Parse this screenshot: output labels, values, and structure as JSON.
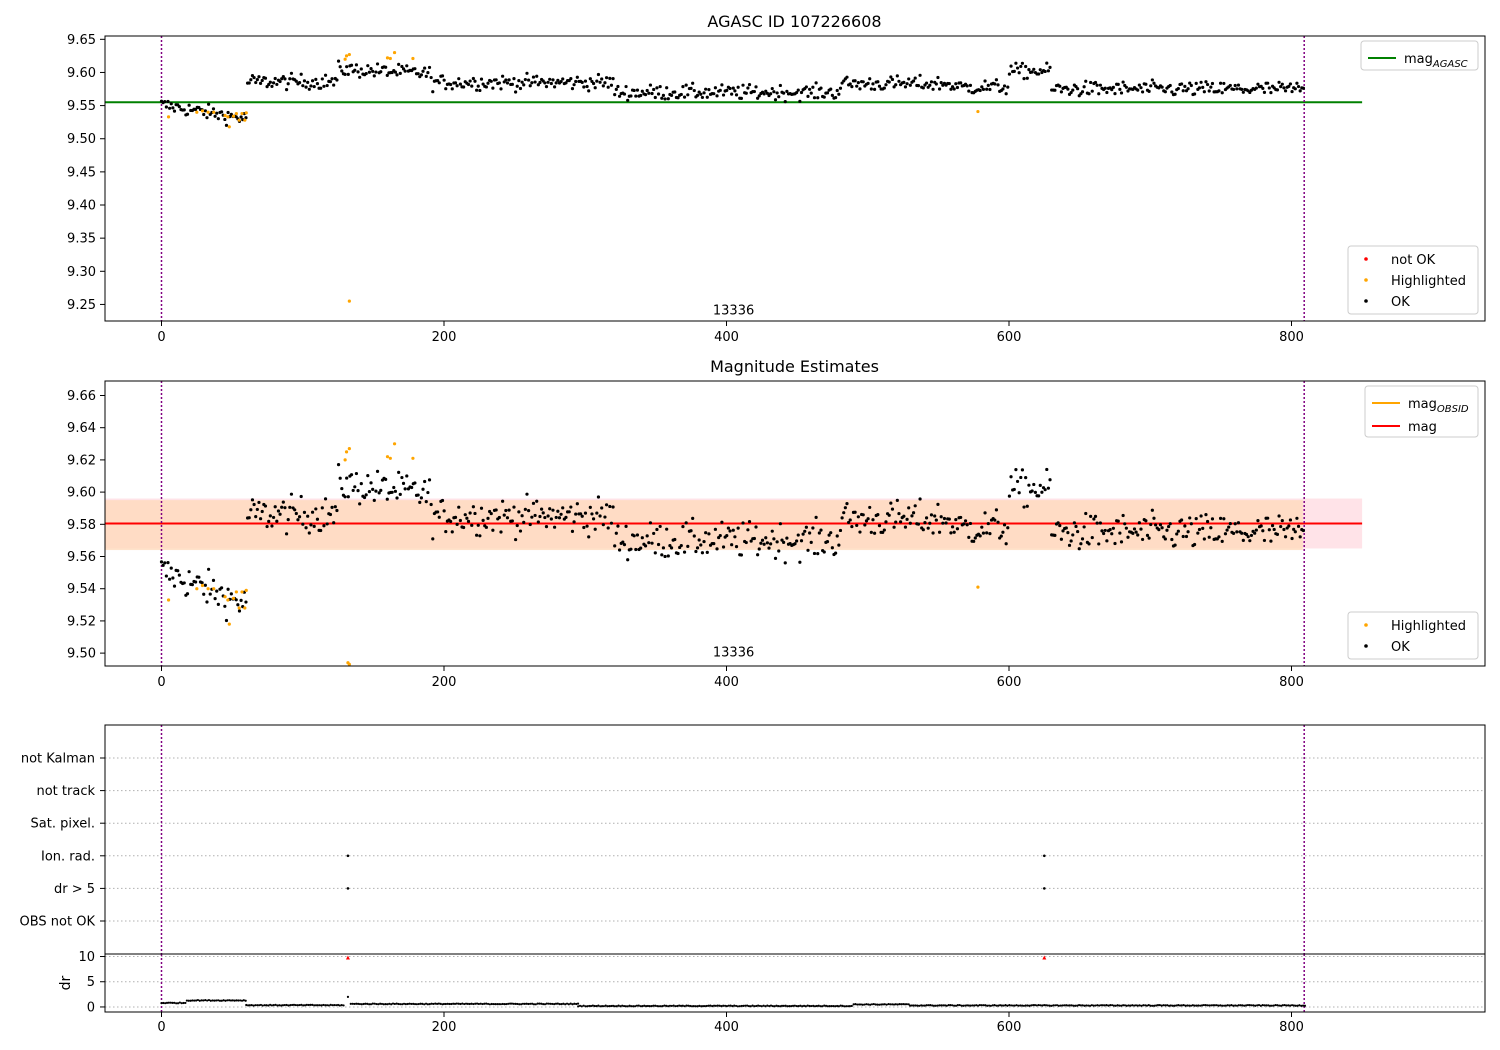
{
  "figure": {
    "title_top": "AGASC ID 107226608",
    "title_middle": "Magnitude Estimates",
    "colors": {
      "ok": "#000000",
      "highlighted": "#ffa500",
      "not_ok": "#ff0000",
      "agasc_line": "#008000",
      "obsid_line": "#ffa500",
      "mag_line": "#ff0000",
      "obsid_band": "#ffdab9",
      "mag_band": "#ffc0cb",
      "obs_boundary": "#800080"
    }
  },
  "chart_data": [
    {
      "id": "top",
      "type": "scatter",
      "title": "AGASC ID 107226608",
      "xlim": [
        -40,
        937
      ],
      "ylim": [
        9.225,
        9.655
      ],
      "xticks": [
        0,
        200,
        400,
        600,
        800
      ],
      "yticks": [
        9.25,
        9.3,
        9.35,
        9.4,
        9.45,
        9.5,
        9.55,
        9.6,
        9.65
      ],
      "ytick_labels": [
        "9.25",
        "9.30",
        "9.35",
        "9.40",
        "9.45",
        "9.50",
        "9.55",
        "9.60",
        "9.65"
      ],
      "annotation": {
        "text": "13336",
        "x": 405,
        "y": 9.235
      },
      "obs_boundaries": [
        0,
        809
      ],
      "reference_lines": [
        {
          "name": "mag_AGASC",
          "y": 9.555,
          "x_range": [
            -40,
            850
          ],
          "color": "#008000"
        }
      ],
      "legend_lines": [
        {
          "base": "mag",
          "sub": "AGASC",
          "color": "#008000"
        }
      ],
      "legend_points": [
        {
          "label": "not OK",
          "color": "#ff0000"
        },
        {
          "label": "Highlighted",
          "color": "#ffa500"
        },
        {
          "label": "OK",
          "color": "#000000"
        }
      ],
      "highlighted_points": [
        [
          5,
          9.533
        ],
        [
          25,
          9.54
        ],
        [
          29,
          9.542
        ],
        [
          33,
          9.54
        ],
        [
          37,
          9.54
        ],
        [
          45,
          9.535
        ],
        [
          47,
          9.533
        ],
        [
          48,
          9.518
        ],
        [
          51,
          9.534
        ],
        [
          53,
          9.538
        ],
        [
          55,
          9.528
        ],
        [
          57,
          9.538
        ],
        [
          59,
          9.528
        ],
        [
          60,
          9.539
        ],
        [
          130,
          9.62
        ],
        [
          131,
          9.625
        ],
        [
          133,
          9.627
        ],
        [
          133,
          9.255
        ],
        [
          160,
          9.622
        ],
        [
          162,
          9.621
        ],
        [
          165,
          9.63
        ],
        [
          178,
          9.621
        ],
        [
          578,
          9.541
        ]
      ]
    },
    {
      "id": "middle",
      "type": "scatter",
      "title": "Magnitude Estimates",
      "xlim": [
        -40,
        937
      ],
      "ylim": [
        9.492,
        9.669
      ],
      "xticks": [
        0,
        200,
        400,
        600,
        800
      ],
      "yticks": [
        9.5,
        9.52,
        9.54,
        9.56,
        9.58,
        9.6,
        9.62,
        9.64,
        9.66
      ],
      "ytick_labels": [
        "9.50",
        "9.52",
        "9.54",
        "9.56",
        "9.58",
        "9.60",
        "9.62",
        "9.64",
        "9.66"
      ],
      "annotation": {
        "text": "13336",
        "x": 405,
        "y": 9.498
      },
      "obs_boundaries": [
        0,
        809
      ],
      "bands": [
        {
          "y0": 9.565,
          "y1": 9.596,
          "x_range": [
            -40,
            850
          ],
          "color": "#ffc0cb"
        },
        {
          "y0": 9.564,
          "y1": 9.595,
          "x_range": [
            -40,
            808
          ],
          "color": "#ffdab9"
        }
      ],
      "reference_lines": [
        {
          "name": "mag_OBSID",
          "y": 9.5805,
          "x_range": [
            -40,
            808
          ],
          "color": "#ffa500"
        },
        {
          "name": "mag",
          "y": 9.5805,
          "x_range": [
            -40,
            850
          ],
          "color": "#ff0000"
        }
      ],
      "legend_lines": [
        {
          "base": "mag",
          "sub": "OBSID",
          "color": "#ffa500"
        },
        {
          "base": "mag",
          "sub": "",
          "color": "#ff0000"
        }
      ],
      "legend_points": [
        {
          "label": "Highlighted",
          "color": "#ffa500"
        },
        {
          "label": "OK",
          "color": "#000000"
        }
      ],
      "highlighted_points": [
        [
          5,
          9.533
        ],
        [
          25,
          9.54
        ],
        [
          29,
          9.542
        ],
        [
          33,
          9.54
        ],
        [
          37,
          9.54
        ],
        [
          45,
          9.535
        ],
        [
          47,
          9.533
        ],
        [
          48,
          9.518
        ],
        [
          51,
          9.534
        ],
        [
          53,
          9.538
        ],
        [
          55,
          9.528
        ],
        [
          57,
          9.538
        ],
        [
          59,
          9.528
        ],
        [
          60,
          9.539
        ],
        [
          130,
          9.62
        ],
        [
          131,
          9.625
        ],
        [
          133,
          9.627
        ],
        [
          132,
          9.494
        ],
        [
          133,
          9.493
        ],
        [
          160,
          9.622
        ],
        [
          162,
          9.621
        ],
        [
          165,
          9.63
        ],
        [
          178,
          9.621
        ],
        [
          578,
          9.541
        ]
      ]
    },
    {
      "id": "flags",
      "type": "scatter",
      "xlim": [
        -40,
        937
      ],
      "categories": [
        "OBS not OK",
        "dr > 5",
        "Ion. rad.",
        "Sat. pixel.",
        "not track",
        "not Kalman"
      ],
      "obs_boundaries": [
        0,
        809
      ],
      "flag_points": [
        {
          "category": "Ion. rad.",
          "x": 132
        },
        {
          "category": "dr > 5",
          "x": 132
        },
        {
          "category": "Ion. rad.",
          "x": 625
        },
        {
          "category": "dr > 5",
          "x": 625
        }
      ]
    },
    {
      "id": "dr",
      "type": "scatter",
      "ylabel": "dr",
      "xlim": [
        -40,
        937
      ],
      "ylim": [
        -1,
        10.5
      ],
      "xticks": [
        0,
        200,
        400,
        600,
        800
      ],
      "yticks": [
        0,
        5,
        10
      ],
      "ytick_labels": [
        "0",
        "5",
        "10"
      ],
      "obs_boundaries": [
        0,
        809
      ],
      "flagged_points": [
        [
          132,
          9.8
        ],
        [
          625,
          9.8
        ]
      ],
      "segments": [
        {
          "x0": 0,
          "x1": 18,
          "y": 0.8
        },
        {
          "x0": 18,
          "x1": 60,
          "y": 1.3
        },
        {
          "x0": 60,
          "x1": 130,
          "y": 0.35
        },
        {
          "x0": 134,
          "x1": 200,
          "y": 0.6
        },
        {
          "x0": 200,
          "x1": 295,
          "y": 0.6
        },
        {
          "x0": 295,
          "x1": 490,
          "y": 0.2
        },
        {
          "x0": 490,
          "x1": 530,
          "y": 0.5
        },
        {
          "x0": 530,
          "x1": 810,
          "y": 0.3
        }
      ],
      "extra_points": [
        [
          132,
          2.0
        ]
      ]
    }
  ]
}
